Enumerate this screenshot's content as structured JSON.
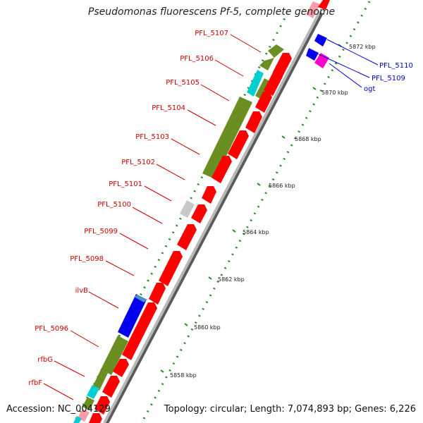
{
  "title": "Pseudomonas fluorescens Pf-5, complete genome",
  "accession": "Accession: NC_004129",
  "topology": "Topology: circular; Length: 7,074,893 bp; Genes: 6,226",
  "ticks": [
    "5858 kbp",
    "5860 kbp",
    "5862 kbp",
    "5864 kbp",
    "5866 kbp",
    "5868 kbp",
    "5870 kbp",
    "5872 kbp"
  ],
  "left_genes": [
    "PFL_5107",
    "PFL_5106",
    "PFL_5105",
    "PFL_5104",
    "PFL_5103",
    "PFL_5102",
    "PFL_5101",
    "PFL_5100",
    "PFL_5099",
    "PFL_5098",
    "ilvB",
    "PFL_5096",
    "rfbG",
    "rfbF"
  ],
  "right_genes": [
    "PFL_5110",
    "PFL_5109",
    "ogt"
  ],
  "colors": {
    "cds": "#ff0000",
    "cog_olive": "#6b8e23",
    "cog_cyan": "#00cfcf",
    "cog_blue": "#0000ee",
    "cog_gray": "#c8c8c8",
    "cog_pink": "#ff00ff",
    "label_red": "#cc0000",
    "label_blue": "#0000cc",
    "tick_green": "#228b22"
  }
}
